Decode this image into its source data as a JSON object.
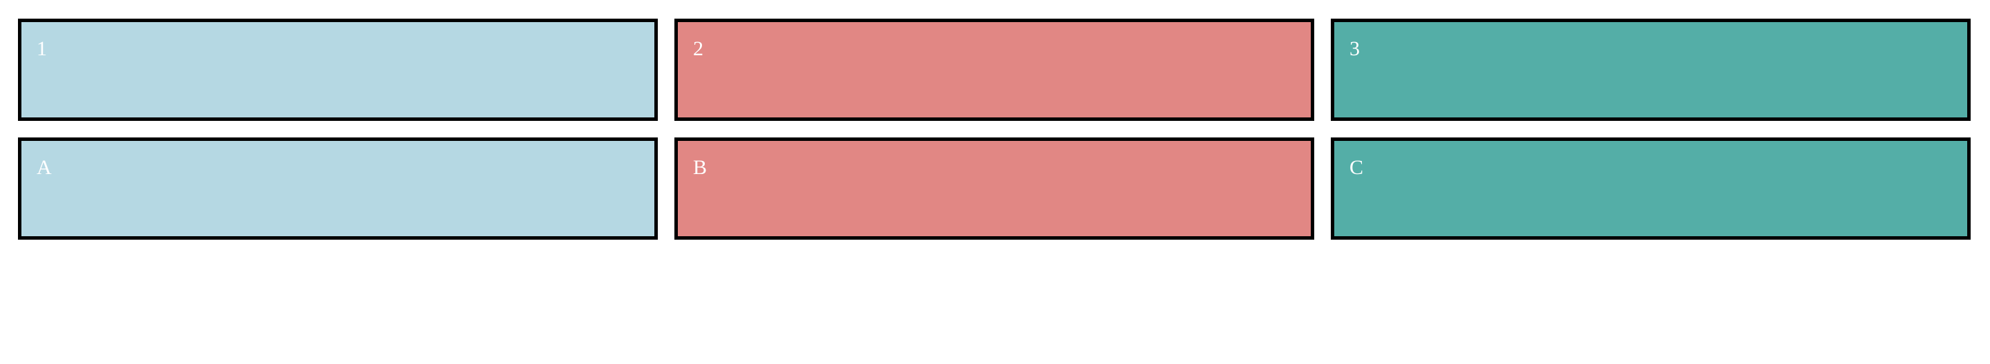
{
  "boxes": [
    {
      "label": "1",
      "color": "#b5d8e3"
    },
    {
      "label": "2",
      "color": "#e18784"
    },
    {
      "label": "3",
      "color": "#54aea7"
    },
    {
      "label": "A",
      "color": "#b5d8e3"
    },
    {
      "label": "B",
      "color": "#e18784"
    },
    {
      "label": "C",
      "color": "#54aea7"
    }
  ]
}
